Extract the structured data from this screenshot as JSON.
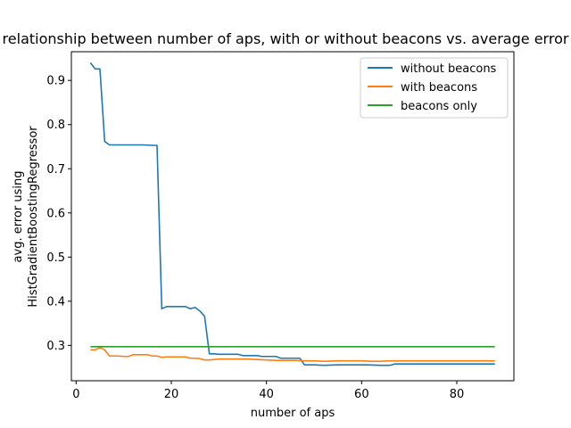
{
  "chart_data": {
    "type": "line",
    "title": "relationship between number of aps, with or without beacons vs. average error",
    "xlabel": "number of aps",
    "ylabel_lines": [
      "avg. error using",
      "HistGradientBoostingRegressor"
    ],
    "xlim": [
      -1,
      92
    ],
    "ylim": [
      0.22,
      0.965
    ],
    "xticks": [
      0,
      20,
      40,
      60,
      80
    ],
    "yticks": [
      0.3,
      0.4,
      0.5,
      0.6,
      0.7,
      0.8,
      0.9
    ],
    "grid": false,
    "legend_position": "top-right",
    "series": [
      {
        "name": "without beacons",
        "color": "#1f77b4",
        "points": [
          [
            3,
            0.94
          ],
          [
            4,
            0.926
          ],
          [
            5,
            0.926
          ],
          [
            6,
            0.762
          ],
          [
            7,
            0.754
          ],
          [
            8,
            0.754
          ],
          [
            10,
            0.754
          ],
          [
            12,
            0.754
          ],
          [
            14,
            0.754
          ],
          [
            16,
            0.753
          ],
          [
            17,
            0.753
          ],
          [
            18,
            0.383
          ],
          [
            19,
            0.388
          ],
          [
            20,
            0.388
          ],
          [
            21,
            0.388
          ],
          [
            22,
            0.388
          ],
          [
            23,
            0.388
          ],
          [
            24,
            0.383
          ],
          [
            25,
            0.386
          ],
          [
            26,
            0.378
          ],
          [
            27,
            0.366
          ],
          [
            28,
            0.281
          ],
          [
            29,
            0.281
          ],
          [
            30,
            0.28
          ],
          [
            32,
            0.28
          ],
          [
            34,
            0.28
          ],
          [
            35,
            0.277
          ],
          [
            36,
            0.277
          ],
          [
            38,
            0.277
          ],
          [
            39,
            0.275
          ],
          [
            40,
            0.275
          ],
          [
            42,
            0.275
          ],
          [
            43,
            0.271
          ],
          [
            45,
            0.271
          ],
          [
            47,
            0.271
          ],
          [
            48,
            0.256
          ],
          [
            50,
            0.256
          ],
          [
            52,
            0.255
          ],
          [
            55,
            0.256
          ],
          [
            58,
            0.256
          ],
          [
            61,
            0.256
          ],
          [
            64,
            0.255
          ],
          [
            66,
            0.255
          ],
          [
            67,
            0.258
          ],
          [
            70,
            0.258
          ],
          [
            75,
            0.258
          ],
          [
            80,
            0.258
          ],
          [
            85,
            0.258
          ],
          [
            88,
            0.258
          ]
        ]
      },
      {
        "name": "with beacons",
        "color": "#ff7f0e",
        "points": [
          [
            3,
            0.29
          ],
          [
            4,
            0.29
          ],
          [
            5,
            0.295
          ],
          [
            6,
            0.29
          ],
          [
            7,
            0.276
          ],
          [
            8,
            0.276
          ],
          [
            9,
            0.276
          ],
          [
            10,
            0.275
          ],
          [
            11,
            0.275
          ],
          [
            12,
            0.279
          ],
          [
            13,
            0.279
          ],
          [
            14,
            0.279
          ],
          [
            15,
            0.279
          ],
          [
            16,
            0.276
          ],
          [
            17,
            0.276
          ],
          [
            18,
            0.273
          ],
          [
            19,
            0.274
          ],
          [
            20,
            0.274
          ],
          [
            21,
            0.274
          ],
          [
            22,
            0.274
          ],
          [
            23,
            0.274
          ],
          [
            24,
            0.271
          ],
          [
            25,
            0.271
          ],
          [
            26,
            0.27
          ],
          [
            27,
            0.267
          ],
          [
            28,
            0.267
          ],
          [
            29,
            0.268
          ],
          [
            30,
            0.269
          ],
          [
            32,
            0.269
          ],
          [
            34,
            0.269
          ],
          [
            36,
            0.269
          ],
          [
            38,
            0.268
          ],
          [
            40,
            0.267
          ],
          [
            42,
            0.266
          ],
          [
            44,
            0.266
          ],
          [
            46,
            0.266
          ],
          [
            48,
            0.265
          ],
          [
            50,
            0.265
          ],
          [
            52,
            0.264
          ],
          [
            55,
            0.265
          ],
          [
            58,
            0.265
          ],
          [
            60,
            0.265
          ],
          [
            62,
            0.264
          ],
          [
            64,
            0.264
          ],
          [
            66,
            0.265
          ],
          [
            70,
            0.265
          ],
          [
            75,
            0.265
          ],
          [
            80,
            0.265
          ],
          [
            85,
            0.265
          ],
          [
            88,
            0.265
          ]
        ]
      },
      {
        "name": "beacons only",
        "color": "#2ca02c",
        "points": [
          [
            3,
            0.297
          ],
          [
            88,
            0.297
          ]
        ]
      }
    ]
  }
}
